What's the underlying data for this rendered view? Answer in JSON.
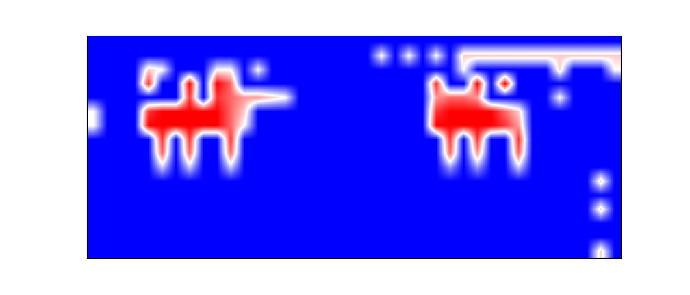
{
  "chart_data": {
    "type": "heatmap",
    "tick_labels": false,
    "cells": [
      [
        0,
        0,
        0,
        0,
        0,
        0,
        0,
        0,
        0,
        0,
        0,
        0,
        0,
        0,
        0,
        0,
        0,
        0,
        0,
        0,
        0,
        0,
        0,
        0,
        0,
        0,
        0,
        0,
        0,
        0,
        0,
        0,
        0,
        0,
        0,
        0,
        0,
        0,
        0
      ],
      [
        0,
        0,
        0,
        0,
        0,
        0,
        0,
        0,
        0,
        0,
        0,
        0,
        0,
        0,
        0,
        0,
        0,
        0,
        0,
        0,
        0,
        0.5,
        0,
        0.5,
        0,
        0.5,
        0,
        0.6,
        0.6,
        0.6,
        0.6,
        0.6,
        0.6,
        0.6,
        0.6,
        0.6,
        0.6,
        0.6,
        0.6
      ],
      [
        0,
        0,
        0,
        0,
        0.6,
        0.5,
        0,
        0,
        0,
        0.5,
        0.5,
        0,
        0.5,
        0,
        0,
        0,
        0,
        0,
        0,
        0,
        0,
        0,
        0,
        0,
        0,
        0,
        0,
        0.5,
        0,
        0,
        0,
        0,
        0,
        0,
        0.6,
        0,
        0,
        0,
        0.5
      ],
      [
        0,
        0,
        0,
        0,
        0.9,
        0,
        0,
        1,
        0,
        1,
        0.8,
        0,
        0,
        0,
        0,
        0,
        0,
        0,
        0,
        0,
        0,
        0,
        0,
        0,
        0,
        0.9,
        0,
        0,
        1,
        0,
        1,
        0,
        0,
        0,
        0,
        0,
        0,
        0,
        0
      ],
      [
        0,
        0,
        0,
        0,
        0,
        0,
        0,
        0.9,
        0,
        0.9,
        0.8,
        0.7,
        0.7,
        0.6,
        0.5,
        0,
        0,
        0,
        0,
        0,
        0,
        0,
        0,
        0,
        0,
        0.7,
        0.8,
        0.8,
        0.7,
        0,
        0,
        0,
        0,
        0,
        0.5,
        0,
        0,
        0,
        0
      ],
      [
        0.5,
        0,
        0,
        0,
        0.9,
        1,
        1,
        1,
        1,
        1,
        0.8,
        0.6,
        0,
        0,
        0,
        0,
        0,
        0,
        0,
        0,
        0,
        0,
        0,
        0,
        0,
        0.9,
        1,
        1,
        1,
        1,
        0.8,
        0.6,
        0,
        0,
        0,
        0,
        0,
        0,
        0
      ],
      [
        0.5,
        0,
        0,
        0,
        1,
        1,
        1,
        1,
        1,
        1,
        0.8,
        0.5,
        0,
        0,
        0,
        0,
        0,
        0,
        0,
        0,
        0,
        0,
        0,
        0,
        0,
        1,
        1,
        1,
        1,
        1,
        0.9,
        0.7,
        0,
        0,
        0,
        0,
        0,
        0,
        0
      ],
      [
        0,
        0,
        0,
        0,
        0,
        0.9,
        0,
        0.9,
        0,
        0,
        0.9,
        0,
        0,
        0,
        0,
        0,
        0,
        0,
        0,
        0,
        0,
        0,
        0,
        0,
        0,
        0,
        0.9,
        0,
        0.9,
        0,
        0,
        0.9,
        0,
        0,
        0,
        0,
        0,
        0,
        0
      ],
      [
        0,
        0,
        0,
        0,
        0,
        0.8,
        0,
        0.8,
        0,
        0,
        0.8,
        0,
        0,
        0,
        0,
        0,
        0,
        0,
        0,
        0,
        0,
        0,
        0,
        0,
        0,
        0,
        0.8,
        0,
        0.7,
        0,
        0,
        0.8,
        0,
        0,
        0,
        0,
        0,
        0,
        0
      ],
      [
        0,
        0,
        0,
        0,
        0,
        0.4,
        0,
        0.4,
        0,
        0,
        0.4,
        0,
        0,
        0,
        0,
        0,
        0,
        0,
        0,
        0,
        0,
        0,
        0,
        0,
        0,
        0,
        0.3,
        0,
        0.3,
        0,
        0,
        0.4,
        0,
        0,
        0,
        0,
        0,
        0,
        0
      ],
      [
        0,
        0,
        0,
        0,
        0,
        0,
        0,
        0,
        0,
        0,
        0,
        0,
        0,
        0,
        0,
        0,
        0,
        0,
        0,
        0,
        0,
        0,
        0,
        0,
        0,
        0,
        0,
        0,
        0,
        0,
        0,
        0,
        0,
        0,
        0,
        0,
        0,
        0.6,
        0
      ],
      [
        0,
        0,
        0,
        0,
        0,
        0,
        0,
        0,
        0,
        0,
        0,
        0,
        0,
        0,
        0,
        0,
        0,
        0,
        0,
        0,
        0,
        0,
        0,
        0,
        0,
        0,
        0,
        0,
        0,
        0,
        0,
        0,
        0,
        0,
        0,
        0,
        0,
        0,
        0
      ],
      [
        0,
        0,
        0,
        0,
        0,
        0,
        0,
        0,
        0,
        0,
        0,
        0,
        0,
        0,
        0,
        0,
        0,
        0,
        0,
        0,
        0,
        0,
        0,
        0,
        0,
        0,
        0,
        0,
        0,
        0,
        0,
        0,
        0,
        0,
        0,
        0,
        0,
        0.6,
        0
      ],
      [
        0,
        0,
        0,
        0,
        0,
        0,
        0,
        0,
        0,
        0,
        0,
        0,
        0,
        0,
        0,
        0,
        0,
        0,
        0,
        0,
        0,
        0,
        0,
        0,
        0,
        0,
        0,
        0,
        0,
        0,
        0,
        0,
        0,
        0,
        0,
        0,
        0,
        0,
        0
      ],
      [
        0,
        0,
        0,
        0,
        0,
        0,
        0,
        0,
        0,
        0,
        0,
        0,
        0,
        0,
        0,
        0,
        0,
        0,
        0,
        0,
        0,
        0,
        0,
        0,
        0,
        0,
        0,
        0,
        0,
        0,
        0,
        0,
        0,
        0,
        0,
        0,
        0,
        0,
        0
      ],
      [
        0,
        0,
        0,
        0,
        0,
        0,
        0,
        0,
        0,
        0,
        0,
        0,
        0,
        0,
        0,
        0,
        0,
        0,
        0,
        0,
        0,
        0,
        0,
        0,
        0,
        0,
        0,
        0,
        0,
        0,
        0,
        0,
        0,
        0,
        0,
        0,
        0,
        0.6,
        0
      ]
    ]
  }
}
